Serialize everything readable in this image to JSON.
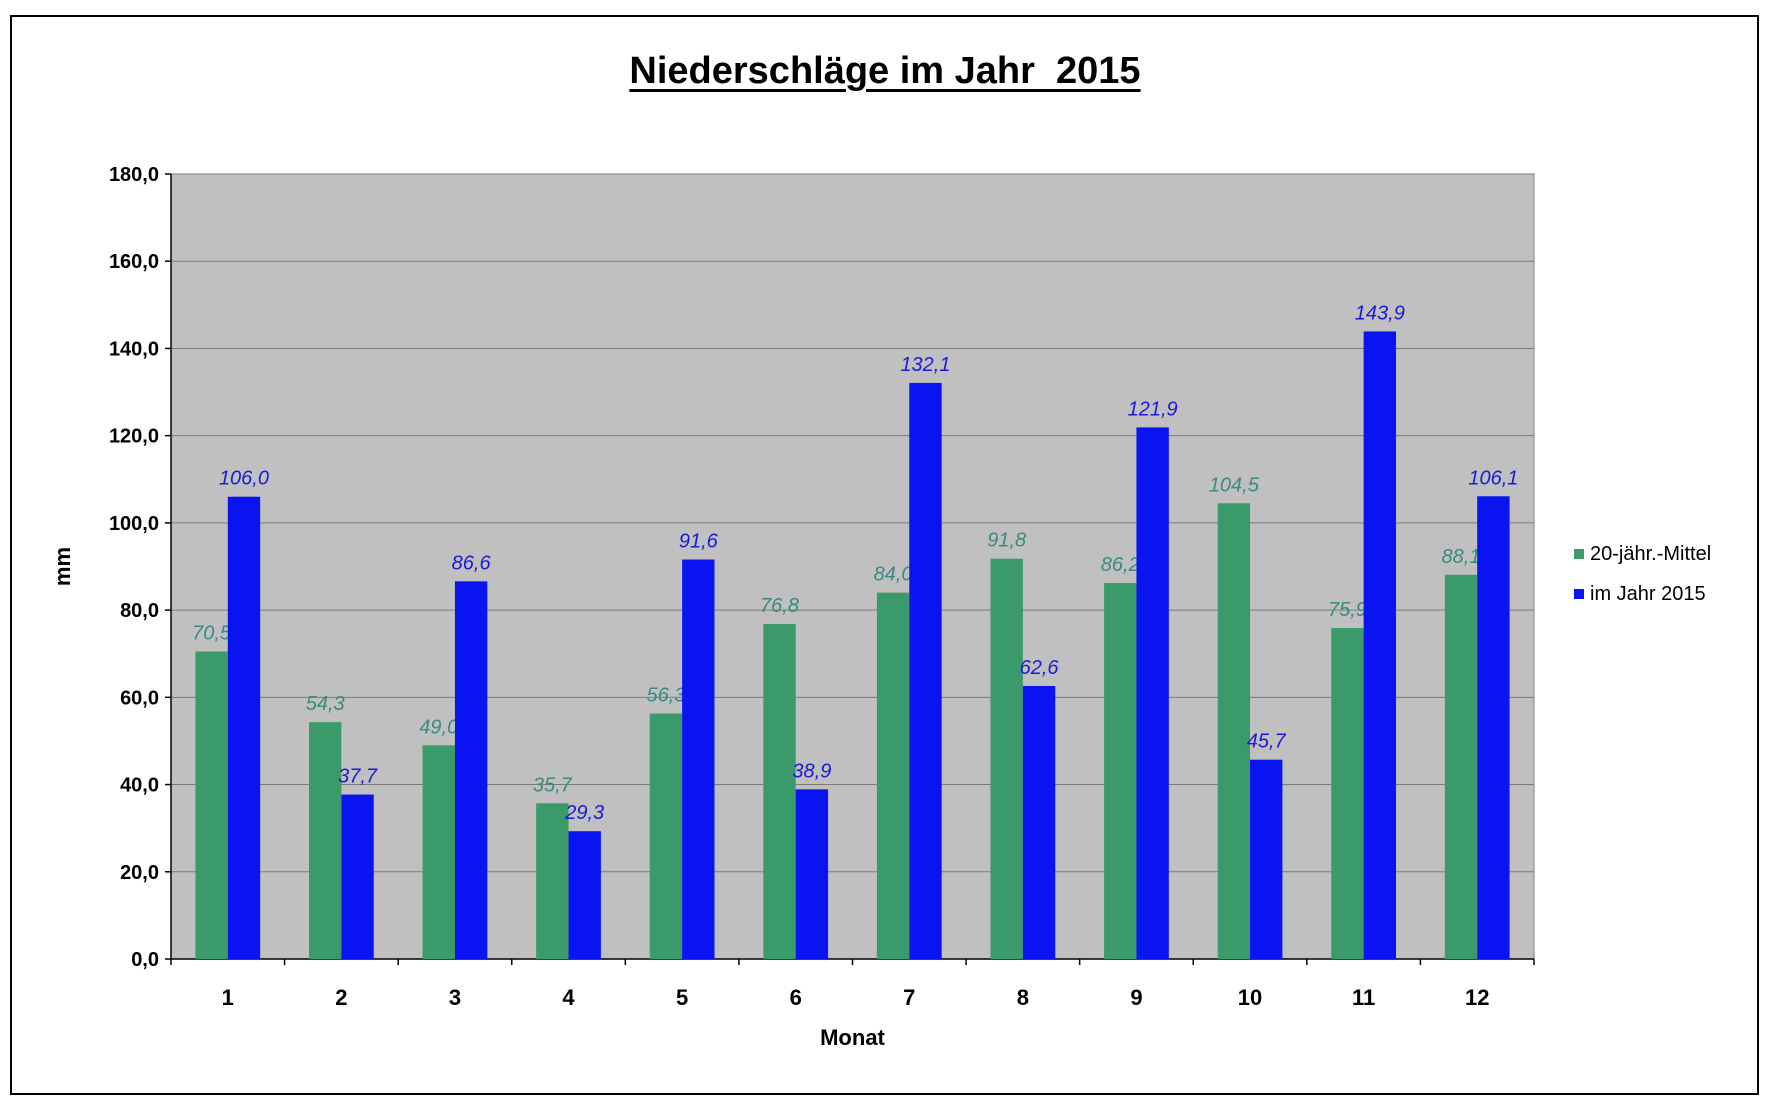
{
  "chart_data": {
    "type": "bar",
    "title": "Niederschläge im Jahr  2015",
    "xlabel": "Monat",
    "ylabel": "mm",
    "ylim": [
      0,
      180
    ],
    "yticks": [
      "0,0",
      "20,0",
      "40,0",
      "60,0",
      "80,0",
      "100,0",
      "120,0",
      "140,0",
      "160,0",
      "180,0"
    ],
    "categories": [
      "1",
      "2",
      "3",
      "4",
      "5",
      "6",
      "7",
      "8",
      "9",
      "10",
      "11",
      "12"
    ],
    "series": [
      {
        "name": "20-jähr.-Mittel",
        "color": "#3a9a6a",
        "label_color": "#3a8a80",
        "values": [
          70.5,
          54.3,
          49.0,
          35.7,
          56.3,
          76.8,
          84.0,
          91.8,
          86.2,
          104.5,
          75.9,
          88.1
        ],
        "labels": [
          "70,5",
          "54,3",
          "49,0",
          "35,7",
          "56,3",
          "76,8",
          "84,0",
          "91,8",
          "86,2",
          "104,5",
          "75,9",
          "88,1"
        ]
      },
      {
        "name": "im Jahr 2015",
        "color": "#0a14f0",
        "label_color": "#1a1ad8",
        "values": [
          106.0,
          37.7,
          86.6,
          29.3,
          91.6,
          38.9,
          132.1,
          62.6,
          121.9,
          45.7,
          143.9,
          106.1
        ],
        "labels": [
          "106,0",
          "37,7",
          "86,6",
          "29,3",
          "91,6",
          "38,9",
          "132,1",
          "62,6",
          "121,9",
          "45,7",
          "143,9",
          "106,1"
        ]
      }
    ],
    "grid": true,
    "plot_background": "#c0c0c0",
    "legend_position": "right"
  }
}
